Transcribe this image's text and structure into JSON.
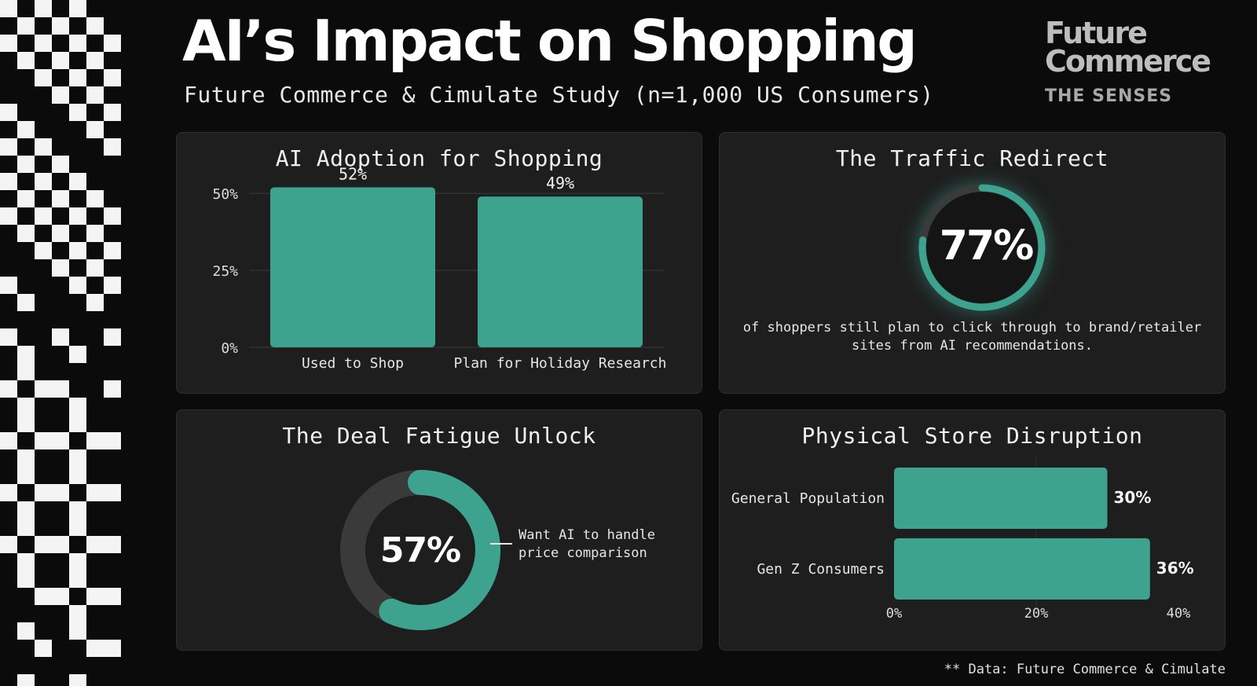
{
  "header": {
    "title": "AI’s Impact on Shopping",
    "subtitle": "Future Commerce & Cimulate Study (n=1,000 US Consumers)"
  },
  "brand": {
    "line1": "Future",
    "line2": "Commerce",
    "line3": "THE SENSES"
  },
  "colors": {
    "accent": "#3da38e",
    "track": "#3a3a3a",
    "card_bg": "#1e1e1e",
    "background": "#0b0b0b"
  },
  "footnote": "** Data: Future Commerce & Cimulate",
  "chart_data": [
    {
      "id": "adoption",
      "type": "bar",
      "title": "AI Adoption for Shopping",
      "categories": [
        "Used to Shop",
        "Plan for Holiday Research"
      ],
      "values": [
        52,
        49
      ],
      "data_labels": [
        "52%",
        "49%"
      ],
      "ylim": [
        0,
        60
      ],
      "yticks": [
        0,
        25,
        50
      ],
      "ytick_labels": [
        "0%",
        "25%",
        "50%"
      ],
      "grid": true
    },
    {
      "id": "traffic",
      "type": "pie",
      "title": "The Traffic Redirect",
      "values": [
        77,
        23
      ],
      "value_label": "77%",
      "description": "of shoppers still plan to click through to brand/retailer sites from AI recommendations."
    },
    {
      "id": "deal",
      "type": "pie",
      "title": "The Deal Fatigue Unlock",
      "values": [
        57,
        43
      ],
      "value_label": "57%",
      "description": "Want AI to handle price comparison"
    },
    {
      "id": "store",
      "type": "bar",
      "orientation": "horizontal",
      "title": "Physical Store Disruption",
      "categories": [
        "General Population",
        "Gen Z Consumers"
      ],
      "values": [
        30,
        36
      ],
      "data_labels": [
        "30%",
        "36%"
      ],
      "xlim": [
        0,
        40
      ],
      "xticks": [
        0,
        20,
        40
      ],
      "xtick_labels": [
        "0%",
        "20%",
        "40%"
      ]
    }
  ]
}
